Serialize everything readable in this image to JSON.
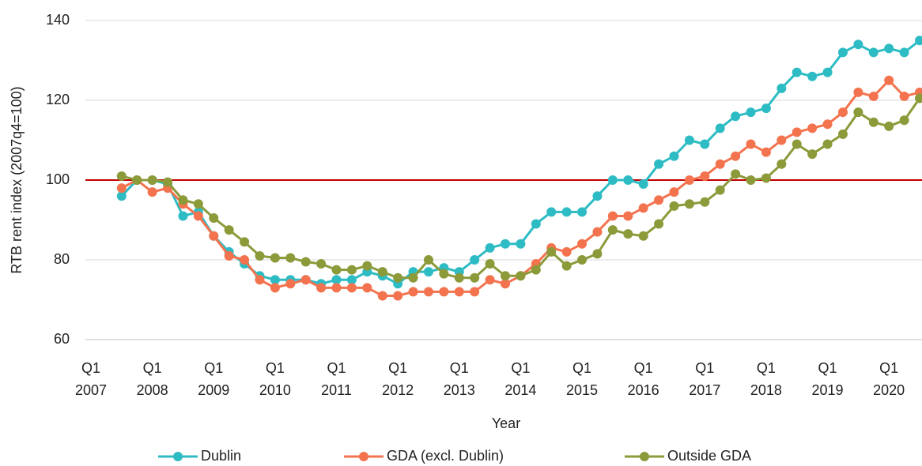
{
  "chart_data": {
    "type": "line",
    "x_label": "Year",
    "y_label": "RTB rent index (2007q4=100)",
    "categories": [
      "Q1 2007",
      null,
      null,
      null,
      "Q1 2008",
      null,
      null,
      null,
      "Q1 2009",
      null,
      null,
      null,
      "Q1 2010",
      null,
      null,
      null,
      "Q1 2011",
      null,
      null,
      null,
      "Q1 2012",
      null,
      null,
      null,
      "Q1 2013",
      null,
      null,
      null,
      "Q1 2014",
      null,
      null,
      null,
      "Q1 2015",
      null,
      null,
      null,
      "Q1 2016",
      null,
      null,
      null,
      "Q1 2017",
      null,
      null,
      null,
      "Q1 2018",
      null,
      null,
      null,
      "Q1 2019",
      null,
      null,
      null,
      "Q1 2020",
      null,
      null
    ],
    "series": [
      {
        "name": "Dublin",
        "color": "#2ebcc4",
        "values": [
          null,
          null,
          96,
          100,
          100,
          99,
          91,
          92,
          86,
          82,
          79,
          76,
          75,
          75,
          75,
          74,
          75,
          75,
          77,
          76,
          74,
          77,
          77,
          78,
          77,
          80,
          83,
          84,
          84,
          89,
          92,
          92,
          92,
          96,
          100,
          100,
          99,
          104,
          106,
          110,
          109,
          113,
          116,
          117,
          118,
          123,
          127,
          126,
          127,
          132,
          134,
          132,
          133,
          132,
          135
        ]
      },
      {
        "name": "GDA (excl. Dublin)",
        "color": "#f4734f",
        "values": [
          null,
          null,
          98,
          100,
          97,
          98,
          94,
          91,
          86,
          81,
          80,
          75,
          73,
          74,
          75,
          73,
          73,
          73,
          73,
          71,
          71,
          72,
          72,
          72,
          72,
          72,
          75,
          74,
          76,
          79,
          83,
          82,
          84,
          87,
          91,
          91,
          93,
          95,
          97,
          100,
          101,
          104,
          106,
          109,
          107,
          110,
          112,
          113,
          114,
          117,
          122,
          121,
          125,
          121,
          122
        ]
      },
      {
        "name": "Outside GDA",
        "color": "#8c9a3a",
        "values": [
          null,
          null,
          101,
          100,
          100,
          99.5,
          95,
          94,
          90.5,
          87.5,
          84.5,
          81,
          80.5,
          80.5,
          79.5,
          79,
          77.5,
          77.5,
          78.5,
          77,
          75.5,
          75.5,
          80,
          76.5,
          75.5,
          75.5,
          79,
          76,
          76,
          77.5,
          82,
          78.5,
          80,
          81.5,
          87.5,
          86.5,
          86,
          89,
          93.5,
          94,
          94.5,
          97.5,
          101.5,
          100,
          100.5,
          104,
          109,
          106.5,
          109,
          111.5,
          117,
          114.5,
          113.5,
          115,
          120.5
        ]
      }
    ],
    "ylim": [
      60,
      140
    ],
    "yticks": [
      60,
      80,
      100,
      120,
      140
    ],
    "grid": true,
    "reference_line": {
      "value": 100,
      "color": "#c00000"
    },
    "legend": "bottom"
  }
}
